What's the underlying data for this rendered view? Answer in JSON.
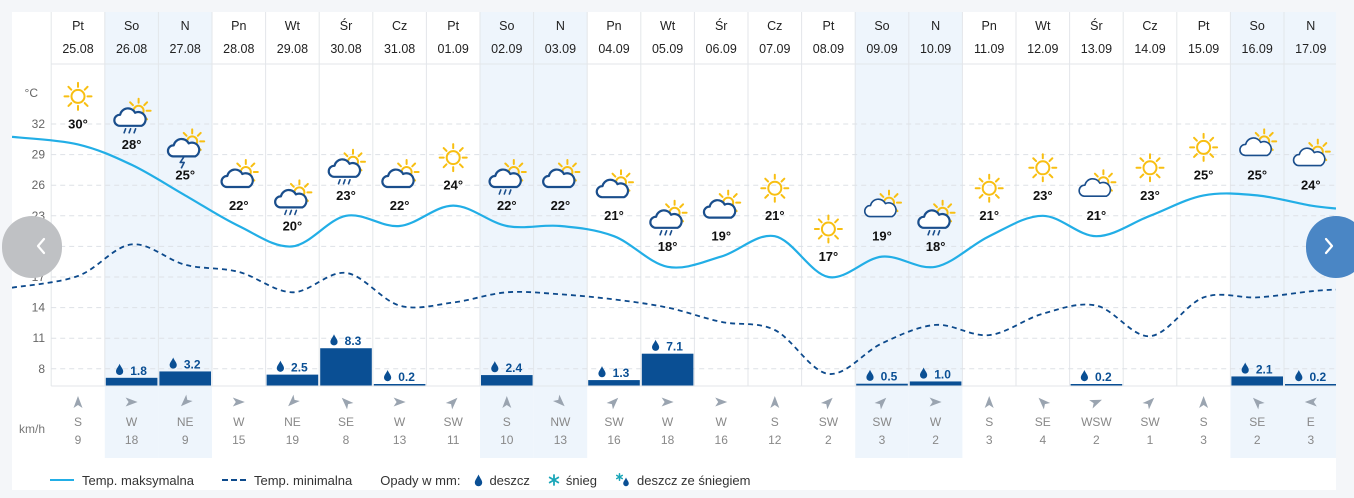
{
  "chart_data": {
    "type": "line",
    "days": [
      {
        "day": "Pt",
        "date": "25.08",
        "tmax": 30,
        "tmin": 17.1,
        "tmax_label": "30°",
        "icon": "sun",
        "precip": null,
        "precip_label": "",
        "wind_dir": "S",
        "wind_speed": "9",
        "weekend": false
      },
      {
        "day": "So",
        "date": "26.08",
        "tmax": 28,
        "tmin": 20.2,
        "tmax_label": "28°",
        "icon": "sun-cloud-rain",
        "precip": 1.8,
        "precip_label": "1.8",
        "wind_dir": "W",
        "wind_speed": "18",
        "weekend": true
      },
      {
        "day": "N",
        "date": "27.08",
        "tmax": 25,
        "tmin": 18.2,
        "tmax_label": "25°",
        "icon": "sun-cloud-storm",
        "precip": 3.2,
        "precip_label": "3.2",
        "wind_dir": "NE",
        "wind_speed": "9",
        "weekend": true
      },
      {
        "day": "Pn",
        "date": "28.08",
        "tmax": 22,
        "tmin": 17.5,
        "tmax_label": "22°",
        "icon": "sun-cloud",
        "precip": null,
        "precip_label": "",
        "wind_dir": "W",
        "wind_speed": "15",
        "weekend": false
      },
      {
        "day": "Wt",
        "date": "29.08",
        "tmax": 20,
        "tmin": 15.5,
        "tmax_label": "20°",
        "icon": "sun-cloud-rain",
        "precip": 2.5,
        "precip_label": "2.5",
        "wind_dir": "NE",
        "wind_speed": "19",
        "weekend": false
      },
      {
        "day": "Śr",
        "date": "30.08",
        "tmax": 23,
        "tmin": 17.4,
        "tmax_label": "23°",
        "icon": "sun-cloud-rain",
        "precip": 8.3,
        "precip_label": "8.3",
        "wind_dir": "SE",
        "wind_speed": "8",
        "weekend": false
      },
      {
        "day": "Cz",
        "date": "31.08",
        "tmax": 22,
        "tmin": 14.2,
        "tmax_label": "22°",
        "icon": "sun-cloud",
        "precip": 0.2,
        "precip_label": "0.2",
        "wind_dir": "W",
        "wind_speed": "13",
        "weekend": false
      },
      {
        "day": "Pt",
        "date": "01.09",
        "tmax": 24,
        "tmin": 14.5,
        "tmax_label": "24°",
        "icon": "sun",
        "precip": null,
        "precip_label": "",
        "wind_dir": "SW",
        "wind_speed": "11",
        "weekend": false
      },
      {
        "day": "So",
        "date": "02.09",
        "tmax": 22,
        "tmin": 15.5,
        "tmax_label": "22°",
        "icon": "sun-cloud-rain",
        "precip": 2.4,
        "precip_label": "2.4",
        "wind_dir": "S",
        "wind_speed": "10",
        "weekend": true
      },
      {
        "day": "N",
        "date": "03.09",
        "tmax": 22,
        "tmin": 15.3,
        "tmax_label": "22°",
        "icon": "sun-cloud",
        "precip": null,
        "precip_label": "",
        "wind_dir": "NW",
        "wind_speed": "13",
        "weekend": true
      },
      {
        "day": "Pn",
        "date": "04.09",
        "tmax": 21,
        "tmin": 14.8,
        "tmax_label": "21°",
        "icon": "sun-cloud",
        "precip": 1.3,
        "precip_label": "1.3",
        "wind_dir": "SW",
        "wind_speed": "16",
        "weekend": false
      },
      {
        "day": "Wt",
        "date": "05.09",
        "tmax": 18,
        "tmin": 14.0,
        "tmax_label": "18°",
        "icon": "sun-cloud-rain",
        "precip": 7.1,
        "precip_label": "7.1",
        "wind_dir": "W",
        "wind_speed": "18",
        "weekend": false
      },
      {
        "day": "Śr",
        "date": "06.09",
        "tmax": 19,
        "tmin": 12.6,
        "tmax_label": "19°",
        "icon": "sun-cloud",
        "precip": null,
        "precip_label": "",
        "wind_dir": "W",
        "wind_speed": "16",
        "weekend": false
      },
      {
        "day": "Cz",
        "date": "07.09",
        "tmax": 21,
        "tmin": 11.8,
        "tmax_label": "21°",
        "icon": "sun",
        "precip": null,
        "precip_label": "",
        "wind_dir": "S",
        "wind_speed": "12",
        "weekend": false
      },
      {
        "day": "Pt",
        "date": "08.09",
        "tmax": 17,
        "tmin": 7.5,
        "tmax_label": "17°",
        "icon": "sun",
        "precip": null,
        "precip_label": "",
        "wind_dir": "SW",
        "wind_speed": "2",
        "weekend": false
      },
      {
        "day": "So",
        "date": "09.09",
        "tmax": 19,
        "tmin": 10.5,
        "tmax_label": "19°",
        "icon": "sun-cloud-light",
        "precip": 0.5,
        "precip_label": "0.5",
        "wind_dir": "SW",
        "wind_speed": "3",
        "weekend": true
      },
      {
        "day": "N",
        "date": "10.09",
        "tmax": 18,
        "tmin": 12.3,
        "tmax_label": "18°",
        "icon": "sun-cloud-rain",
        "precip": 1.0,
        "precip_label": "1.0",
        "wind_dir": "W",
        "wind_speed": "2",
        "weekend": true
      },
      {
        "day": "Pn",
        "date": "11.09",
        "tmax": 21,
        "tmin": 11.3,
        "tmax_label": "21°",
        "icon": "sun",
        "precip": null,
        "precip_label": "",
        "wind_dir": "S",
        "wind_speed": "3",
        "weekend": false
      },
      {
        "day": "Wt",
        "date": "12.09",
        "tmax": 23,
        "tmin": 13.4,
        "tmax_label": "23°",
        "icon": "sun",
        "precip": null,
        "precip_label": "",
        "wind_dir": "SE",
        "wind_speed": "4",
        "weekend": false
      },
      {
        "day": "Śr",
        "date": "13.09",
        "tmax": 21,
        "tmin": 14.2,
        "tmax_label": "21°",
        "icon": "sun-cloud-light",
        "precip": 0.2,
        "precip_label": "0.2",
        "wind_dir": "WSW",
        "wind_speed": "2",
        "weekend": false
      },
      {
        "day": "Cz",
        "date": "14.09",
        "tmax": 23,
        "tmin": 11.2,
        "tmax_label": "23°",
        "icon": "sun",
        "precip": null,
        "precip_label": "",
        "wind_dir": "SW",
        "wind_speed": "1",
        "weekend": false
      },
      {
        "day": "Pt",
        "date": "15.09",
        "tmax": 25,
        "tmin": 15.0,
        "tmax_label": "25°",
        "icon": "sun",
        "precip": null,
        "precip_label": "",
        "wind_dir": "S",
        "wind_speed": "3",
        "weekend": false
      },
      {
        "day": "So",
        "date": "16.09",
        "tmax": 25,
        "tmin": 15.0,
        "tmax_label": "25°",
        "icon": "sun-cloud-light",
        "precip": 2.1,
        "precip_label": "2.1",
        "wind_dir": "SE",
        "wind_speed": "2",
        "weekend": true
      },
      {
        "day": "N",
        "date": "17.09",
        "tmax": 24,
        "tmin": 15.6,
        "tmax_label": "24°",
        "icon": "sun-cloud-light",
        "precip": 0.2,
        "precip_label": "0.2",
        "wind_dir": "E",
        "wind_speed": "3",
        "weekend": true
      }
    ],
    "y_axis": {
      "unit_label": "°C",
      "ticks": [
        32,
        29,
        26,
        23,
        20,
        17,
        14,
        11,
        8
      ],
      "range": [
        8,
        33
      ]
    },
    "precip_scale_max_mm": 10,
    "wind_unit_label": "km/h",
    "series": [
      {
        "name": "Temp. maksymalna",
        "key": "tmax"
      },
      {
        "name": "Temp. minimalna",
        "key": "tmin"
      }
    ],
    "grid": true,
    "legend_position": "bottom"
  },
  "legend": {
    "max_label": "Temp. maksymalna",
    "min_label": "Temp. minimalna",
    "precip_title": "Opady w mm:",
    "rain_label": "deszcz",
    "snow_label": "śnieg",
    "sleet_label": "deszcz ze śniegiem"
  },
  "colors": {
    "tmax_line": "#22aee6",
    "tmin_line": "#0d4a8c",
    "precip_bar": "#0a4f94",
    "weekend_bg": "#eef5fc",
    "sun": "#f8bf12",
    "cloud": "#1a4e8c",
    "nav_left": "#bfc1c4",
    "nav_right": "#4a86c5",
    "snow": "#1aa6b8"
  }
}
